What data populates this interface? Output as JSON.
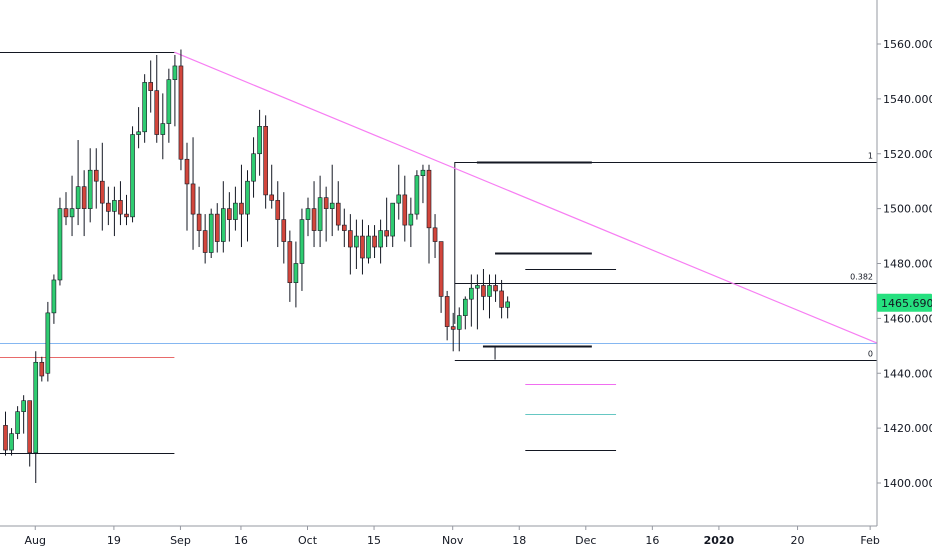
{
  "chart_data": {
    "type": "candlestick",
    "instrument_price": "1465.6900",
    "price_label_color": "#26e07f",
    "up_color": "#26a69a",
    "down_color": "#ef5350",
    "candle_up_color": "#2fcc71",
    "candle_down_color": "#d2463c",
    "y_range": [
      1388,
      1580
    ],
    "y_ticks": [
      "1400.0000",
      "1420.0000",
      "1440.0000",
      "1460.0000",
      "1480.0000",
      "1500.0000",
      "1520.0000",
      "1540.0000",
      "1560.0000"
    ],
    "y_tick_values": [
      1400,
      1420,
      1440,
      1460,
      1480,
      1500,
      1520,
      1540,
      1560
    ],
    "x_ticks": [
      {
        "label": "Aug",
        "bar": 5,
        "bold": false
      },
      {
        "label": "19",
        "bar": 18,
        "bold": false
      },
      {
        "label": "Sep",
        "bar": 29,
        "bold": false
      },
      {
        "label": "16",
        "bar": 39,
        "bold": false
      },
      {
        "label": "Oct",
        "bar": 50,
        "bold": false
      },
      {
        "label": "15",
        "bar": 61,
        "bold": false
      },
      {
        "label": "Nov",
        "bar": 74,
        "bold": false
      },
      {
        "label": "18",
        "bar": 85,
        "bold": false
      },
      {
        "label": "Dec",
        "bar": 96,
        "bold": false
      },
      {
        "label": "16",
        "bar": 107,
        "bold": false
      },
      {
        "label": "2020",
        "bar": 118,
        "bold": true
      },
      {
        "label": "20",
        "bar": 131,
        "bold": false
      },
      {
        "label": "Feb",
        "bar": 143,
        "bold": false
      }
    ],
    "candles": [
      [
        1421,
        1426,
        1410,
        1412
      ],
      [
        1412,
        1420,
        1410,
        1418
      ],
      [
        1418,
        1428,
        1416,
        1426
      ],
      [
        1426,
        1432,
        1418,
        1430
      ],
      [
        1430,
        1430,
        1406,
        1411
      ],
      [
        1411,
        1448,
        1400,
        1444
      ],
      [
        1444,
        1446,
        1437,
        1439
      ],
      [
        1440,
        1466,
        1437,
        1462
      ],
      [
        1462,
        1476,
        1458,
        1474
      ],
      [
        1474,
        1504,
        1472,
        1500
      ],
      [
        1500,
        1506,
        1494,
        1497
      ],
      [
        1497,
        1512,
        1490,
        1500
      ],
      [
        1500,
        1525,
        1494,
        1508
      ],
      [
        1508,
        1514,
        1490,
        1500
      ],
      [
        1500,
        1522,
        1495,
        1514
      ],
      [
        1514,
        1522,
        1500,
        1510
      ],
      [
        1510,
        1524,
        1492,
        1502
      ],
      [
        1502,
        1508,
        1494,
        1499
      ],
      [
        1499,
        1508,
        1490,
        1503
      ],
      [
        1503,
        1510,
        1494,
        1498
      ],
      [
        1498,
        1505,
        1494,
        1497
      ],
      [
        1497,
        1530,
        1495,
        1527
      ],
      [
        1527,
        1537,
        1522,
        1528
      ],
      [
        1528,
        1549,
        1524,
        1546
      ],
      [
        1546,
        1554,
        1535,
        1543
      ],
      [
        1543,
        1556,
        1524,
        1527
      ],
      [
        1527,
        1542,
        1518,
        1531
      ],
      [
        1531,
        1551,
        1524,
        1547
      ],
      [
        1547,
        1556,
        1530,
        1552
      ],
      [
        1552,
        1558,
        1514,
        1518
      ],
      [
        1518,
        1524,
        1492,
        1509
      ],
      [
        1509,
        1526,
        1485,
        1498
      ],
      [
        1498,
        1508,
        1486,
        1492
      ],
      [
        1492,
        1498,
        1480,
        1484
      ],
      [
        1484,
        1500,
        1482,
        1498
      ],
      [
        1498,
        1502,
        1484,
        1488
      ],
      [
        1488,
        1510,
        1484,
        1500
      ],
      [
        1500,
        1506,
        1488,
        1496
      ],
      [
        1496,
        1508,
        1492,
        1502
      ],
      [
        1502,
        1516,
        1486,
        1498
      ],
      [
        1498,
        1514,
        1488,
        1510
      ],
      [
        1510,
        1526,
        1504,
        1520
      ],
      [
        1520,
        1536,
        1512,
        1530
      ],
      [
        1530,
        1534,
        1500,
        1505
      ],
      [
        1505,
        1516,
        1500,
        1503
      ],
      [
        1503,
        1510,
        1486,
        1496
      ],
      [
        1496,
        1506,
        1480,
        1488
      ],
      [
        1488,
        1492,
        1466,
        1473
      ],
      [
        1473,
        1488,
        1464,
        1480
      ],
      [
        1480,
        1500,
        1470,
        1496
      ],
      [
        1496,
        1504,
        1490,
        1500
      ],
      [
        1500,
        1510,
        1486,
        1492
      ],
      [
        1492,
        1512,
        1486,
        1504
      ],
      [
        1504,
        1508,
        1488,
        1500
      ],
      [
        1500,
        1516,
        1490,
        1502
      ],
      [
        1502,
        1510,
        1492,
        1494
      ],
      [
        1494,
        1500,
        1486,
        1492
      ],
      [
        1492,
        1498,
        1476,
        1486
      ],
      [
        1486,
        1496,
        1478,
        1490
      ],
      [
        1490,
        1496,
        1476,
        1482
      ],
      [
        1482,
        1494,
        1480,
        1490
      ],
      [
        1490,
        1494,
        1482,
        1486
      ],
      [
        1486,
        1496,
        1480,
        1492
      ],
      [
        1492,
        1504,
        1486,
        1490
      ],
      [
        1490,
        1502,
        1486,
        1502
      ],
      [
        1502,
        1516,
        1496,
        1505
      ],
      [
        1505,
        1512,
        1488,
        1494
      ],
      [
        1494,
        1504,
        1486,
        1498
      ],
      [
        1498,
        1514,
        1496,
        1512
      ],
      [
        1512,
        1516,
        1502,
        1514
      ],
      [
        1514,
        1516,
        1480,
        1493
      ],
      [
        1493,
        1498,
        1482,
        1488
      ],
      [
        1488,
        1488,
        1462,
        1468
      ],
      [
        1468,
        1470,
        1452,
        1457
      ],
      [
        1457,
        1462,
        1448,
        1456
      ],
      [
        1456,
        1464,
        1448,
        1461
      ],
      [
        1461,
        1468,
        1456,
        1467
      ],
      [
        1467,
        1476,
        1457,
        1471
      ],
      [
        1471,
        1476,
        1456,
        1472
      ],
      [
        1472,
        1478,
        1463,
        1468
      ],
      [
        1468,
        1476,
        1460,
        1472
      ],
      [
        1472,
        1476,
        1466,
        1470
      ],
      [
        1470,
        1474,
        1460,
        1464
      ],
      [
        1464,
        1468,
        1460,
        1466
      ]
    ],
    "trendline": {
      "from": {
        "bar": 28,
        "price": 1557
      },
      "to": {
        "bar": "end",
        "price": 1451
      },
      "color": "#f77ef3"
    },
    "fib": {
      "from_bar": 76,
      "to_bar": 100,
      "levels": [
        {
          "label": "1",
          "price": 1517
        },
        {
          "label": "0.382",
          "price": 1473
        },
        {
          "label": "0",
          "price": 1445
        }
      ],
      "color": "#131722"
    },
    "horizontal_lines": [
      {
        "price": 1451,
        "from_bar": "start",
        "to_bar": "end",
        "color": "#85b7f1"
      },
      {
        "price": 1446,
        "from_bar": "start",
        "to_bar": 28,
        "color": "#e86a6a"
      },
      {
        "price": 1557,
        "from_bar": "start",
        "to_bar": 28,
        "color": "#131722"
      },
      {
        "price": 1411,
        "from_bar": "start",
        "to_bar": 28,
        "color": "#131722"
      },
      {
        "price": 1517,
        "from_bar": 78,
        "to_bar": 97,
        "color": "#131722",
        "thick": true
      },
      {
        "price": 1484,
        "from_bar": 81,
        "to_bar": 97,
        "color": "#131722",
        "thick": true
      },
      {
        "price": 1478,
        "from_bar": 86,
        "to_bar": 101,
        "color": "#131722"
      },
      {
        "price": 1450,
        "from_bar": 79,
        "to_bar": 97,
        "color": "#131722",
        "thick": true
      },
      {
        "price": 1436,
        "from_bar": 86,
        "to_bar": 101,
        "color": "#f06ef0"
      },
      {
        "price": 1425,
        "from_bar": 86,
        "to_bar": 101,
        "color": "#66c7c3"
      },
      {
        "price": 1412,
        "from_bar": 86,
        "to_bar": 101,
        "color": "#131722"
      }
    ]
  }
}
